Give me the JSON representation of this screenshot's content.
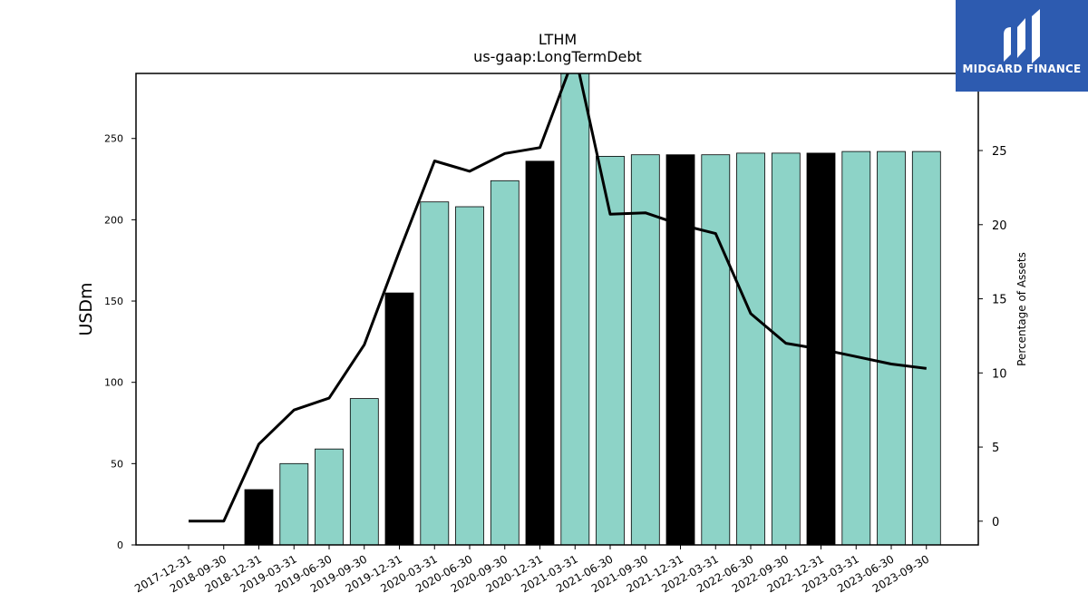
{
  "chart_data": {
    "type": "bar",
    "title": "LTHM",
    "subtitle": "us-gaap:LongTermDebt",
    "ylabel": "USDm",
    "y2label": "Percentage of Assets",
    "ylim": [
      0,
      290
    ],
    "y2lim": [
      -1.6,
      30.2
    ],
    "yticks": [
      0,
      50,
      100,
      150,
      200,
      250
    ],
    "y2ticks": [
      0,
      5,
      10,
      15,
      20,
      25
    ],
    "categories": [
      "2017-12-31",
      "2018-09-30",
      "2018-12-31",
      "2019-03-31",
      "2019-06-30",
      "2019-09-30",
      "2019-12-31",
      "2020-03-31",
      "2020-06-30",
      "2020-09-30",
      "2020-12-31",
      "2021-03-31",
      "2021-06-30",
      "2021-09-30",
      "2021-12-31",
      "2022-03-31",
      "2022-06-30",
      "2022-09-30",
      "2022-12-31",
      "2023-03-31",
      "2023-06-30",
      "2023-09-30"
    ],
    "series": [
      {
        "kind": "bar",
        "values": [
          0,
          0,
          34,
          50,
          59,
          90,
          155,
          211,
          208,
          224,
          236,
          291,
          239,
          240,
          240,
          240,
          241,
          241,
          241,
          242,
          242,
          242
        ],
        "highlight_color": "#000000",
        "color": "#8dd3c7",
        "highlighted_categories": [
          "2018-12-31",
          "2019-12-31",
          "2020-12-31",
          "2021-12-31",
          "2022-12-31"
        ]
      },
      {
        "kind": "line",
        "axis": "right",
        "color": "#000000",
        "values": [
          0,
          0,
          5.2,
          7.5,
          8.3,
          11.9,
          18.2,
          24.3,
          23.6,
          24.8,
          25.2,
          31.5,
          20.7,
          20.8,
          20.0,
          19.4,
          14.0,
          12.0,
          11.6,
          11.1,
          10.6,
          10.3
        ]
      }
    ],
    "grid": false
  },
  "logo": {
    "text": "MIDGARD FINANCE"
  }
}
